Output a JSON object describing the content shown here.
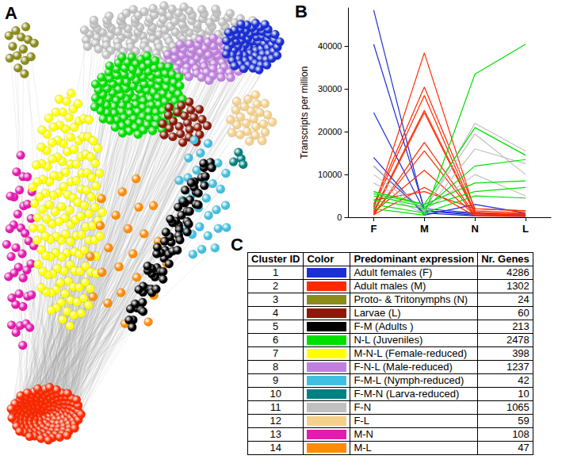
{
  "panel_labels": [
    "A",
    "B",
    "C"
  ],
  "chart_data": {
    "type": "line",
    "y_label": "Transcripts per million",
    "categories": [
      "F",
      "M",
      "N",
      "L"
    ],
    "ylim": [
      0,
      49000
    ],
    "yticks": [
      0,
      10000,
      20000,
      30000,
      40000
    ],
    "grid": false,
    "series": [
      {
        "color": "#1a2fd6",
        "values": [
          48500,
          1500,
          500,
          300
        ]
      },
      {
        "color": "#1a2fd6",
        "values": [
          40500,
          2000,
          1000,
          500
        ]
      },
      {
        "color": "#1a2fd6",
        "values": [
          24500,
          1500,
          800,
          400
        ]
      },
      {
        "color": "#1a2fd6",
        "values": [
          14000,
          500,
          3000,
          1000
        ]
      },
      {
        "color": "#1a2fd6",
        "values": [
          12000,
          1000,
          300,
          200
        ]
      },
      {
        "color": "#ff2a00",
        "values": [
          2000,
          38500,
          1500,
          1000
        ]
      },
      {
        "color": "#ff2a00",
        "values": [
          3000,
          30500,
          2000,
          1500
        ]
      },
      {
        "color": "#ff2a00",
        "values": [
          2500,
          28500,
          1000,
          800
        ]
      },
      {
        "color": "#ff2a00",
        "values": [
          1500,
          25000,
          1200,
          600
        ]
      },
      {
        "color": "#ff2a00",
        "values": [
          1000,
          24500,
          800,
          500
        ]
      },
      {
        "color": "#ff2a00",
        "values": [
          500,
          17500,
          600,
          400
        ]
      },
      {
        "color": "#ff2a00",
        "values": [
          800,
          15500,
          400,
          300
        ]
      },
      {
        "color": "#ff2a00",
        "values": [
          1200,
          11000,
          500,
          300
        ]
      },
      {
        "color": "#ff2a00",
        "values": [
          600,
          7000,
          300,
          200
        ]
      },
      {
        "color": "#ff2a00",
        "values": [
          4000,
          6000,
          2000,
          1500
        ]
      },
      {
        "color": "#c0c0c0",
        "values": [
          10000,
          1500,
          22000,
          15500
        ]
      },
      {
        "color": "#c0c0c0",
        "values": [
          8000,
          2000,
          19500,
          10000
        ]
      },
      {
        "color": "#c0c0c0",
        "values": [
          6000,
          1000,
          16000,
          12500
        ]
      },
      {
        "color": "#c0c0c0",
        "values": [
          12000,
          1500,
          10000,
          5000
        ]
      },
      {
        "color": "#00e000",
        "values": [
          2000,
          500,
          33500,
          40500
        ]
      },
      {
        "color": "#00e000",
        "values": [
          5500,
          3000,
          21000,
          14500
        ]
      },
      {
        "color": "#00e000",
        "values": [
          4000,
          2000,
          12000,
          13500
        ]
      },
      {
        "color": "#00e000",
        "values": [
          6000,
          3000,
          8000,
          8500
        ]
      },
      {
        "color": "#00e000",
        "values": [
          3000,
          1000,
          5000,
          4500
        ]
      },
      {
        "color": "#00e000",
        "values": [
          5000,
          2500,
          6000,
          7000
        ]
      }
    ]
  },
  "table": {
    "columns": [
      "Cluster ID",
      "Color",
      "Predominant expression",
      "Nr. Genes"
    ],
    "rows": [
      {
        "id": 1,
        "color": "#1a2fd6",
        "expression": "Adult females (F)",
        "genes": 4286
      },
      {
        "id": 2,
        "color": "#ff2a00",
        "expression": "Adult males (M)",
        "genes": 1302
      },
      {
        "id": 3,
        "color": "#8b8b1a",
        "expression": "Proto- & Tritonymphs (N)",
        "genes": 24
      },
      {
        "id": 4,
        "color": "#8b1a0a",
        "expression": "Larvae (L)",
        "genes": 60
      },
      {
        "id": 5,
        "color": "#000000",
        "expression": "F-M (Adults )",
        "genes": 213
      },
      {
        "id": 6,
        "color": "#00e000",
        "expression": "N-L (Juveniles)",
        "genes": 2478
      },
      {
        "id": 7,
        "color": "#ffff00",
        "expression": "M-N-L (Female-reduced)",
        "genes": 398
      },
      {
        "id": 8,
        "color": "#c080e0",
        "expression": "F-N-L (Male-reduced)",
        "genes": 1237
      },
      {
        "id": 9,
        "color": "#40c0e0",
        "expression": "F-M-L (Nymph-reduced)",
        "genes": 42
      },
      {
        "id": 10,
        "color": "#008080",
        "expression": "F-M-N (Larva-reduced)",
        "genes": 10
      },
      {
        "id": 11,
        "color": "#c0c0c0",
        "expression": "F-N",
        "genes": 1065
      },
      {
        "id": 12,
        "color": "#f5d08a",
        "expression": "F-L",
        "genes": 59
      },
      {
        "id": 13,
        "color": "#e619b0",
        "expression": "M-N",
        "genes": 108
      },
      {
        "id": 14,
        "color": "#ff8c00",
        "expression": "M-L",
        "genes": 47
      }
    ]
  }
}
